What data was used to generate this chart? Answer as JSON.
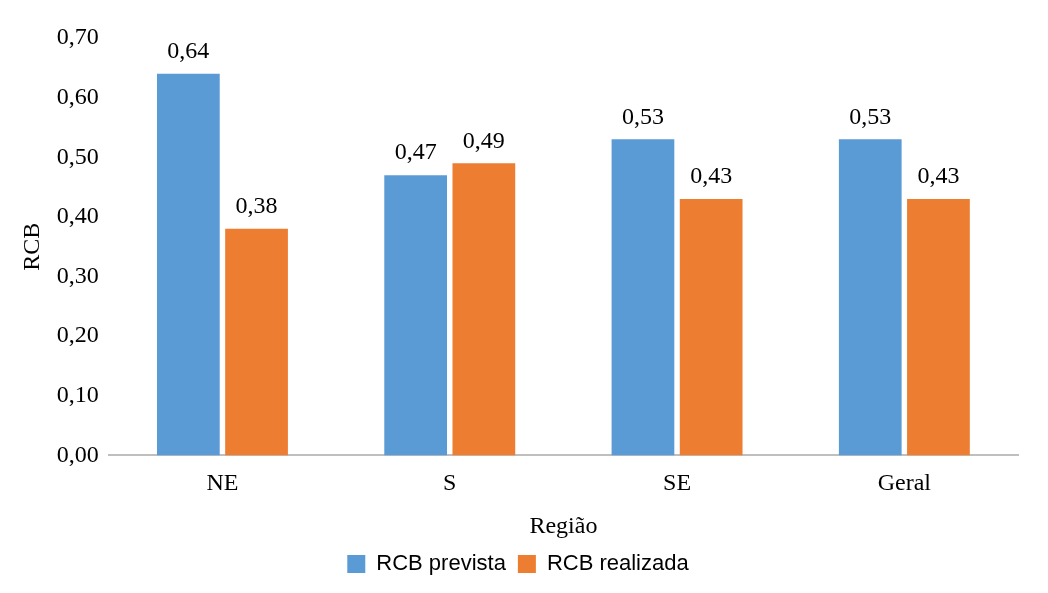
{
  "chart_data": {
    "type": "bar",
    "xlabel": "Região",
    "ylabel": "RCB",
    "categories": [
      "NE",
      "S",
      "SE",
      "Geral"
    ],
    "series": [
      {
        "name": "RCB prevista",
        "color": "#5b9bd5",
        "values": [
          0.64,
          0.47,
          0.53,
          0.53
        ],
        "value_labels": [
          "0,64",
          "0,47",
          "0,53",
          "0,53"
        ]
      },
      {
        "name": "RCB realizada",
        "color": "#ed7d31",
        "values": [
          0.38,
          0.49,
          0.43,
          0.43
        ],
        "value_labels": [
          "0,38",
          "0,49",
          "0,43",
          "0,43"
        ]
      }
    ],
    "ylim": [
      0,
      0.7
    ],
    "yticks": [
      {
        "value": 0,
        "label": "0,00"
      },
      {
        "value": 0.1,
        "label": "0,10"
      },
      {
        "value": 0.2,
        "label": "0,20"
      },
      {
        "value": 0.3,
        "label": "0,30"
      },
      {
        "value": 0.4,
        "label": "0,40"
      },
      {
        "value": 0.5,
        "label": "0,50"
      },
      {
        "value": 0.6,
        "label": "0,60"
      },
      {
        "value": 0.7,
        "label": "0,70"
      }
    ],
    "grid": false,
    "legend": "bottom"
  }
}
